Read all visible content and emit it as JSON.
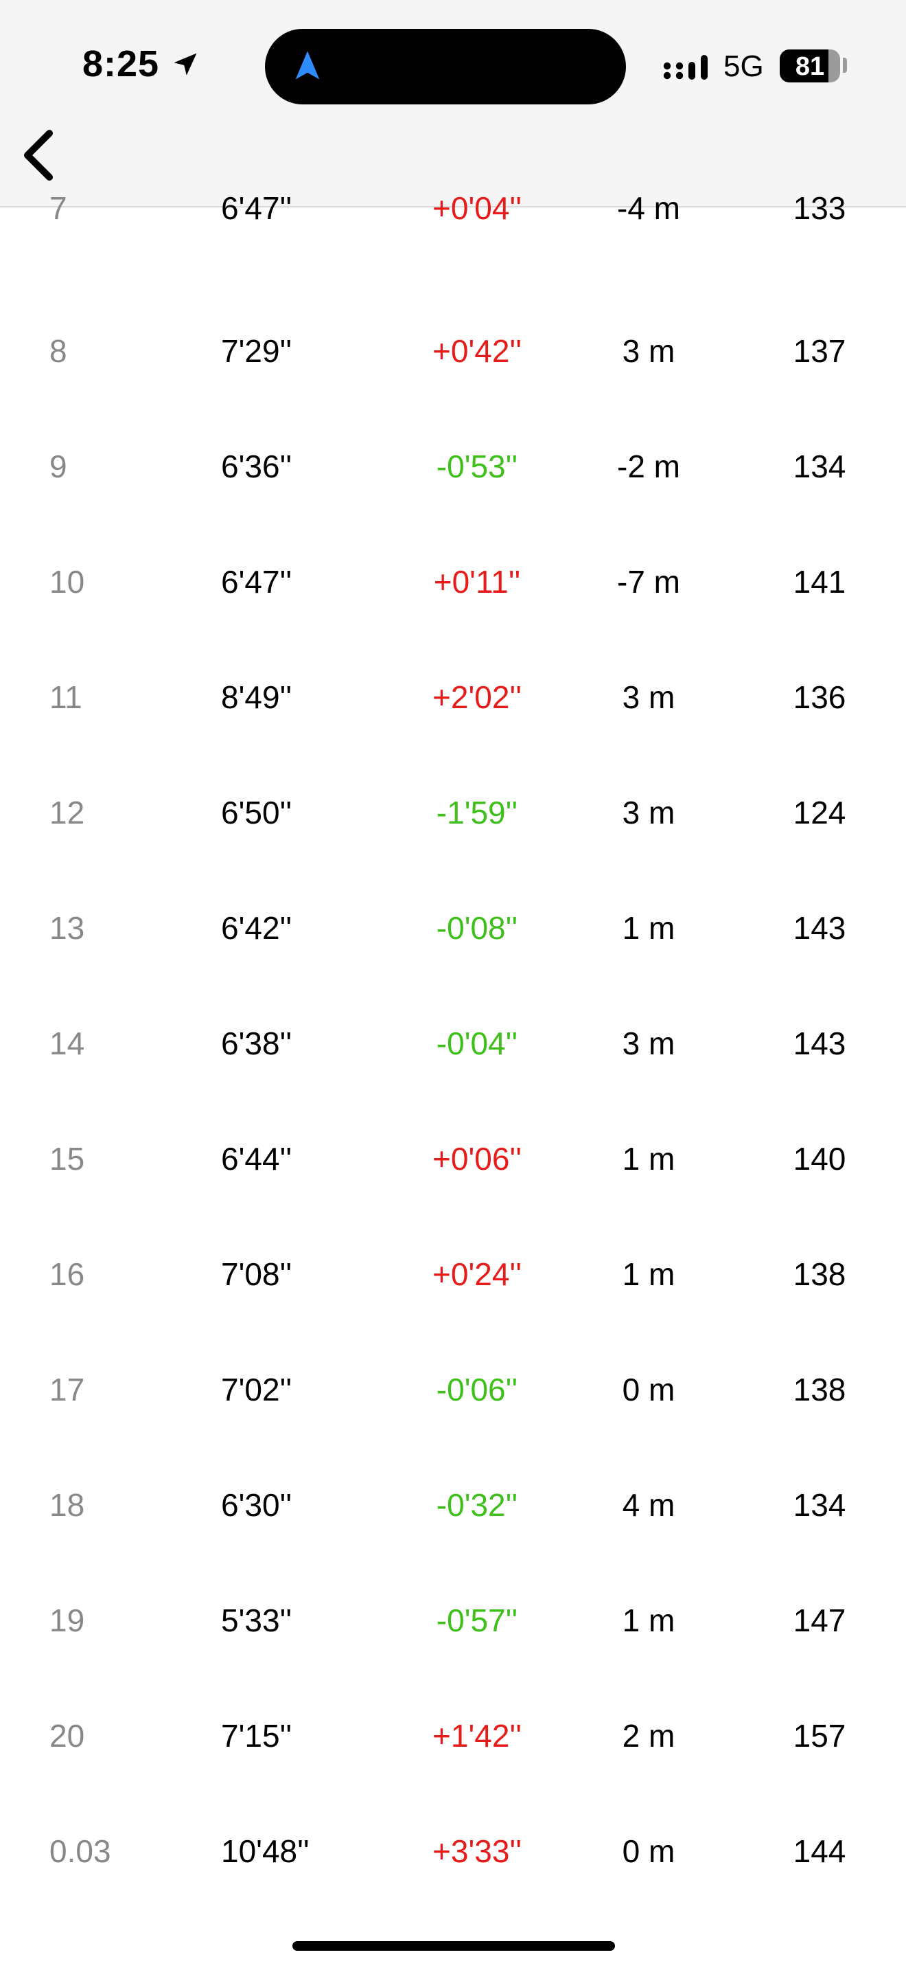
{
  "status_bar": {
    "time": "8:25",
    "network": "5G",
    "battery": "81",
    "battery_level": 0.81
  },
  "colors": {
    "slower": "#e81b1b",
    "faster": "#3fbf1a",
    "lap_label": "#888888",
    "nav_icon": "#2f8cff"
  },
  "icons": [
    "location-arrow-icon",
    "navigation-icon",
    "signal-icon",
    "battery-icon",
    "back-chevron-icon"
  ],
  "laps": [
    {
      "lap": "7",
      "pace": "6'47''",
      "diff": "+0'04''",
      "trend": "pos",
      "elev": "-4 m",
      "hr": "133"
    },
    {
      "lap": "8",
      "pace": "7'29''",
      "diff": "+0'42''",
      "trend": "pos",
      "elev": "3 m",
      "hr": "137"
    },
    {
      "lap": "9",
      "pace": "6'36''",
      "diff": "-0'53''",
      "trend": "neg",
      "elev": "-2 m",
      "hr": "134"
    },
    {
      "lap": "10",
      "pace": "6'47''",
      "diff": "+0'11''",
      "trend": "pos",
      "elev": "-7 m",
      "hr": "141"
    },
    {
      "lap": "11",
      "pace": "8'49''",
      "diff": "+2'02''",
      "trend": "pos",
      "elev": "3 m",
      "hr": "136"
    },
    {
      "lap": "12",
      "pace": "6'50''",
      "diff": "-1'59''",
      "trend": "neg",
      "elev": "3 m",
      "hr": "124"
    },
    {
      "lap": "13",
      "pace": "6'42''",
      "diff": "-0'08''",
      "trend": "neg",
      "elev": "1 m",
      "hr": "143"
    },
    {
      "lap": "14",
      "pace": "6'38''",
      "diff": "-0'04''",
      "trend": "neg",
      "elev": "3 m",
      "hr": "143"
    },
    {
      "lap": "15",
      "pace": "6'44''",
      "diff": "+0'06''",
      "trend": "pos",
      "elev": "1 m",
      "hr": "140"
    },
    {
      "lap": "16",
      "pace": "7'08''",
      "diff": "+0'24''",
      "trend": "pos",
      "elev": "1 m",
      "hr": "138"
    },
    {
      "lap": "17",
      "pace": "7'02''",
      "diff": "-0'06''",
      "trend": "neg",
      "elev": "0 m",
      "hr": "138"
    },
    {
      "lap": "18",
      "pace": "6'30''",
      "diff": "-0'32''",
      "trend": "neg",
      "elev": "4 m",
      "hr": "134"
    },
    {
      "lap": "19",
      "pace": "5'33''",
      "diff": "-0'57''",
      "trend": "neg",
      "elev": "1 m",
      "hr": "147"
    },
    {
      "lap": "20",
      "pace": "7'15''",
      "diff": "+1'42''",
      "trend": "pos",
      "elev": "2 m",
      "hr": "157"
    },
    {
      "lap": "0.03",
      "pace": "10'48''",
      "diff": "+3'33''",
      "trend": "pos",
      "elev": "0 m",
      "hr": "144"
    }
  ]
}
